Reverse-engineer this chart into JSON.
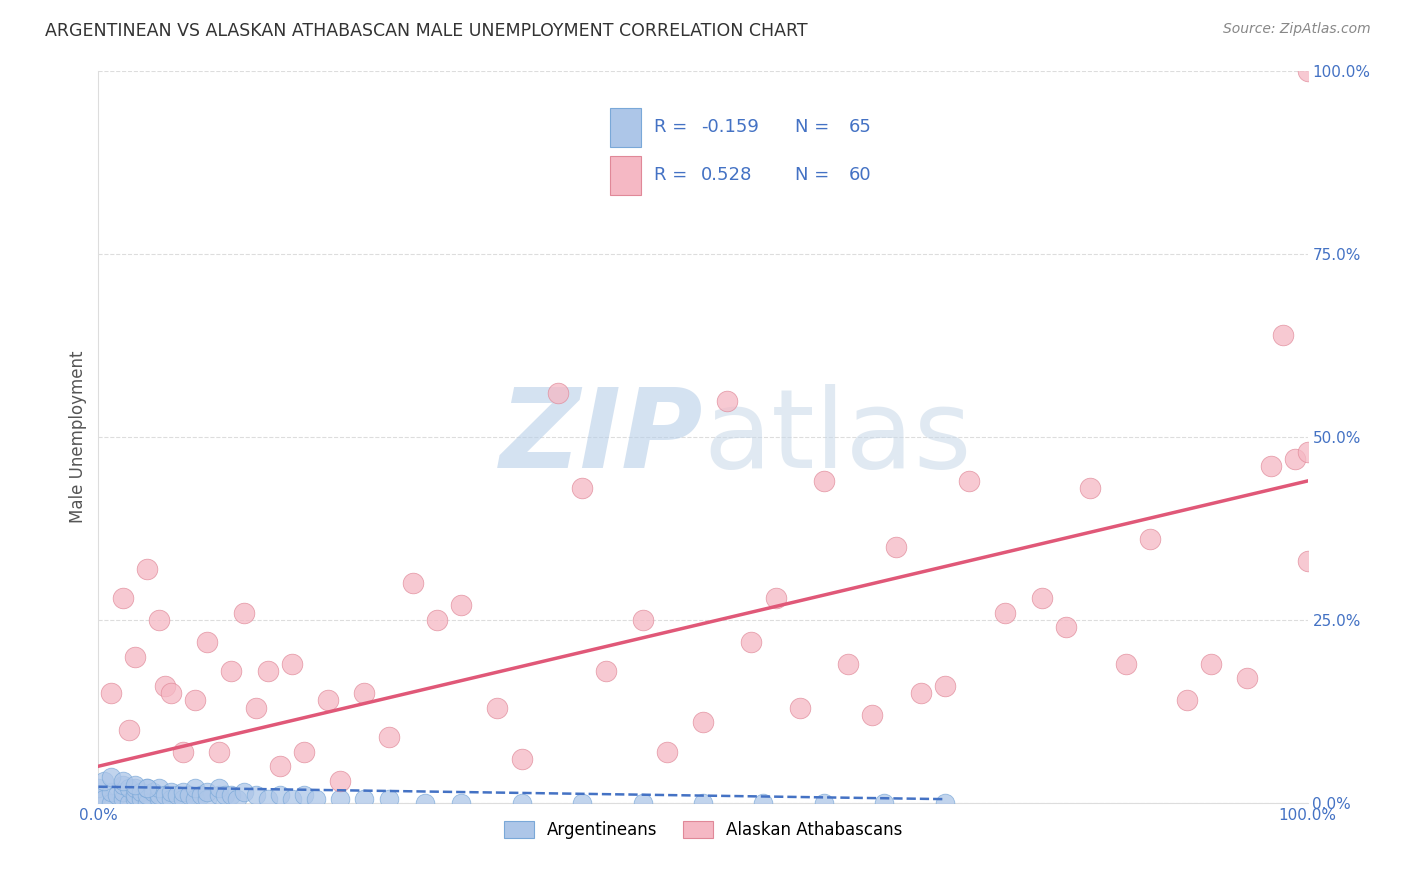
{
  "title": "ARGENTINEAN VS ALASKAN ATHABASCAN MALE UNEMPLOYMENT CORRELATION CHART",
  "source": "Source: ZipAtlas.com",
  "ylabel": "Male Unemployment",
  "blue_label": "Argentineans",
  "pink_label": "Alaskan Athabascans",
  "blue_R": -0.159,
  "blue_N": 65,
  "pink_R": 0.528,
  "pink_N": 60,
  "blue_color": "#adc6e8",
  "pink_color": "#f5b8c4",
  "blue_line_color": "#4472c4",
  "pink_line_color": "#e05878",
  "blue_marker_edge": "#7aa8d8",
  "pink_marker_edge": "#e08898",
  "title_color": "#333333",
  "source_color": "#888888",
  "legend_text_color": "#4472c4",
  "right_axis_color": "#4472c4",
  "xlim": [
    0,
    1
  ],
  "ylim": [
    0,
    1
  ],
  "right_yticks": [
    0,
    0.25,
    0.5,
    0.75,
    1.0
  ],
  "right_yticklabels": [
    "0.0%",
    "25.0%",
    "50.0%",
    "75.0%",
    "100.0%"
  ],
  "blue_x": [
    0.0,
    0.0,
    0.005,
    0.01,
    0.01,
    0.015,
    0.02,
    0.02,
    0.02,
    0.025,
    0.025,
    0.03,
    0.03,
    0.03,
    0.035,
    0.035,
    0.04,
    0.04,
    0.04,
    0.045,
    0.05,
    0.05,
    0.05,
    0.055,
    0.06,
    0.06,
    0.065,
    0.07,
    0.07,
    0.075,
    0.08,
    0.08,
    0.085,
    0.09,
    0.09,
    0.1,
    0.1,
    0.105,
    0.11,
    0.115,
    0.12,
    0.13,
    0.14,
    0.15,
    0.16,
    0.17,
    0.18,
    0.2,
    0.22,
    0.24,
    0.27,
    0.3,
    0.35,
    0.4,
    0.45,
    0.5,
    0.55,
    0.6,
    0.65,
    0.7,
    0.005,
    0.01,
    0.02,
    0.03,
    0.04
  ],
  "blue_y": [
    0.01,
    0.02,
    0.005,
    0.0,
    0.015,
    0.01,
    0.005,
    0.015,
    0.025,
    0.0,
    0.02,
    0.005,
    0.01,
    0.02,
    0.005,
    0.015,
    0.0,
    0.01,
    0.02,
    0.015,
    0.005,
    0.01,
    0.02,
    0.01,
    0.005,
    0.015,
    0.01,
    0.005,
    0.015,
    0.01,
    0.005,
    0.02,
    0.01,
    0.005,
    0.015,
    0.01,
    0.02,
    0.01,
    0.01,
    0.005,
    0.015,
    0.01,
    0.005,
    0.01,
    0.005,
    0.01,
    0.005,
    0.005,
    0.005,
    0.005,
    0.0,
    0.0,
    0.0,
    0.0,
    0.0,
    0.0,
    0.0,
    0.0,
    0.0,
    0.0,
    0.03,
    0.035,
    0.03,
    0.025,
    0.02
  ],
  "pink_x": [
    0.01,
    0.02,
    0.025,
    0.03,
    0.04,
    0.05,
    0.055,
    0.06,
    0.07,
    0.08,
    0.09,
    0.1,
    0.11,
    0.12,
    0.13,
    0.14,
    0.15,
    0.16,
    0.17,
    0.19,
    0.2,
    0.22,
    0.24,
    0.26,
    0.28,
    0.3,
    0.33,
    0.35,
    0.38,
    0.4,
    0.42,
    0.45,
    0.47,
    0.5,
    0.52,
    0.54,
    0.56,
    0.58,
    0.6,
    0.62,
    0.64,
    0.66,
    0.68,
    0.7,
    0.72,
    0.75,
    0.78,
    0.8,
    0.82,
    0.85,
    0.87,
    0.9,
    0.92,
    0.95,
    0.97,
    0.98,
    0.99,
    1.0,
    1.0,
    1.0
  ],
  "pink_y": [
    0.15,
    0.28,
    0.1,
    0.2,
    0.32,
    0.25,
    0.16,
    0.15,
    0.07,
    0.14,
    0.22,
    0.07,
    0.18,
    0.26,
    0.13,
    0.18,
    0.05,
    0.19,
    0.07,
    0.14,
    0.03,
    0.15,
    0.09,
    0.3,
    0.25,
    0.27,
    0.13,
    0.06,
    0.56,
    0.43,
    0.18,
    0.25,
    0.07,
    0.11,
    0.55,
    0.22,
    0.28,
    0.13,
    0.44,
    0.19,
    0.12,
    0.35,
    0.15,
    0.16,
    0.44,
    0.26,
    0.28,
    0.24,
    0.43,
    0.19,
    0.36,
    0.14,
    0.19,
    0.17,
    0.46,
    0.64,
    0.47,
    0.33,
    0.48,
    1.0
  ],
  "background_color": "#ffffff",
  "grid_color": "#dddddd",
  "watermark_zip_color": "#b8cfe8",
  "watermark_atlas_color": "#c8d8e8",
  "blue_trend_x0": 0.0,
  "blue_trend_x1": 0.7,
  "blue_trend_y0": 0.022,
  "blue_trend_y1": 0.005,
  "pink_trend_x0": 0.0,
  "pink_trend_x1": 1.0,
  "pink_trend_y0": 0.05,
  "pink_trend_y1": 0.44
}
